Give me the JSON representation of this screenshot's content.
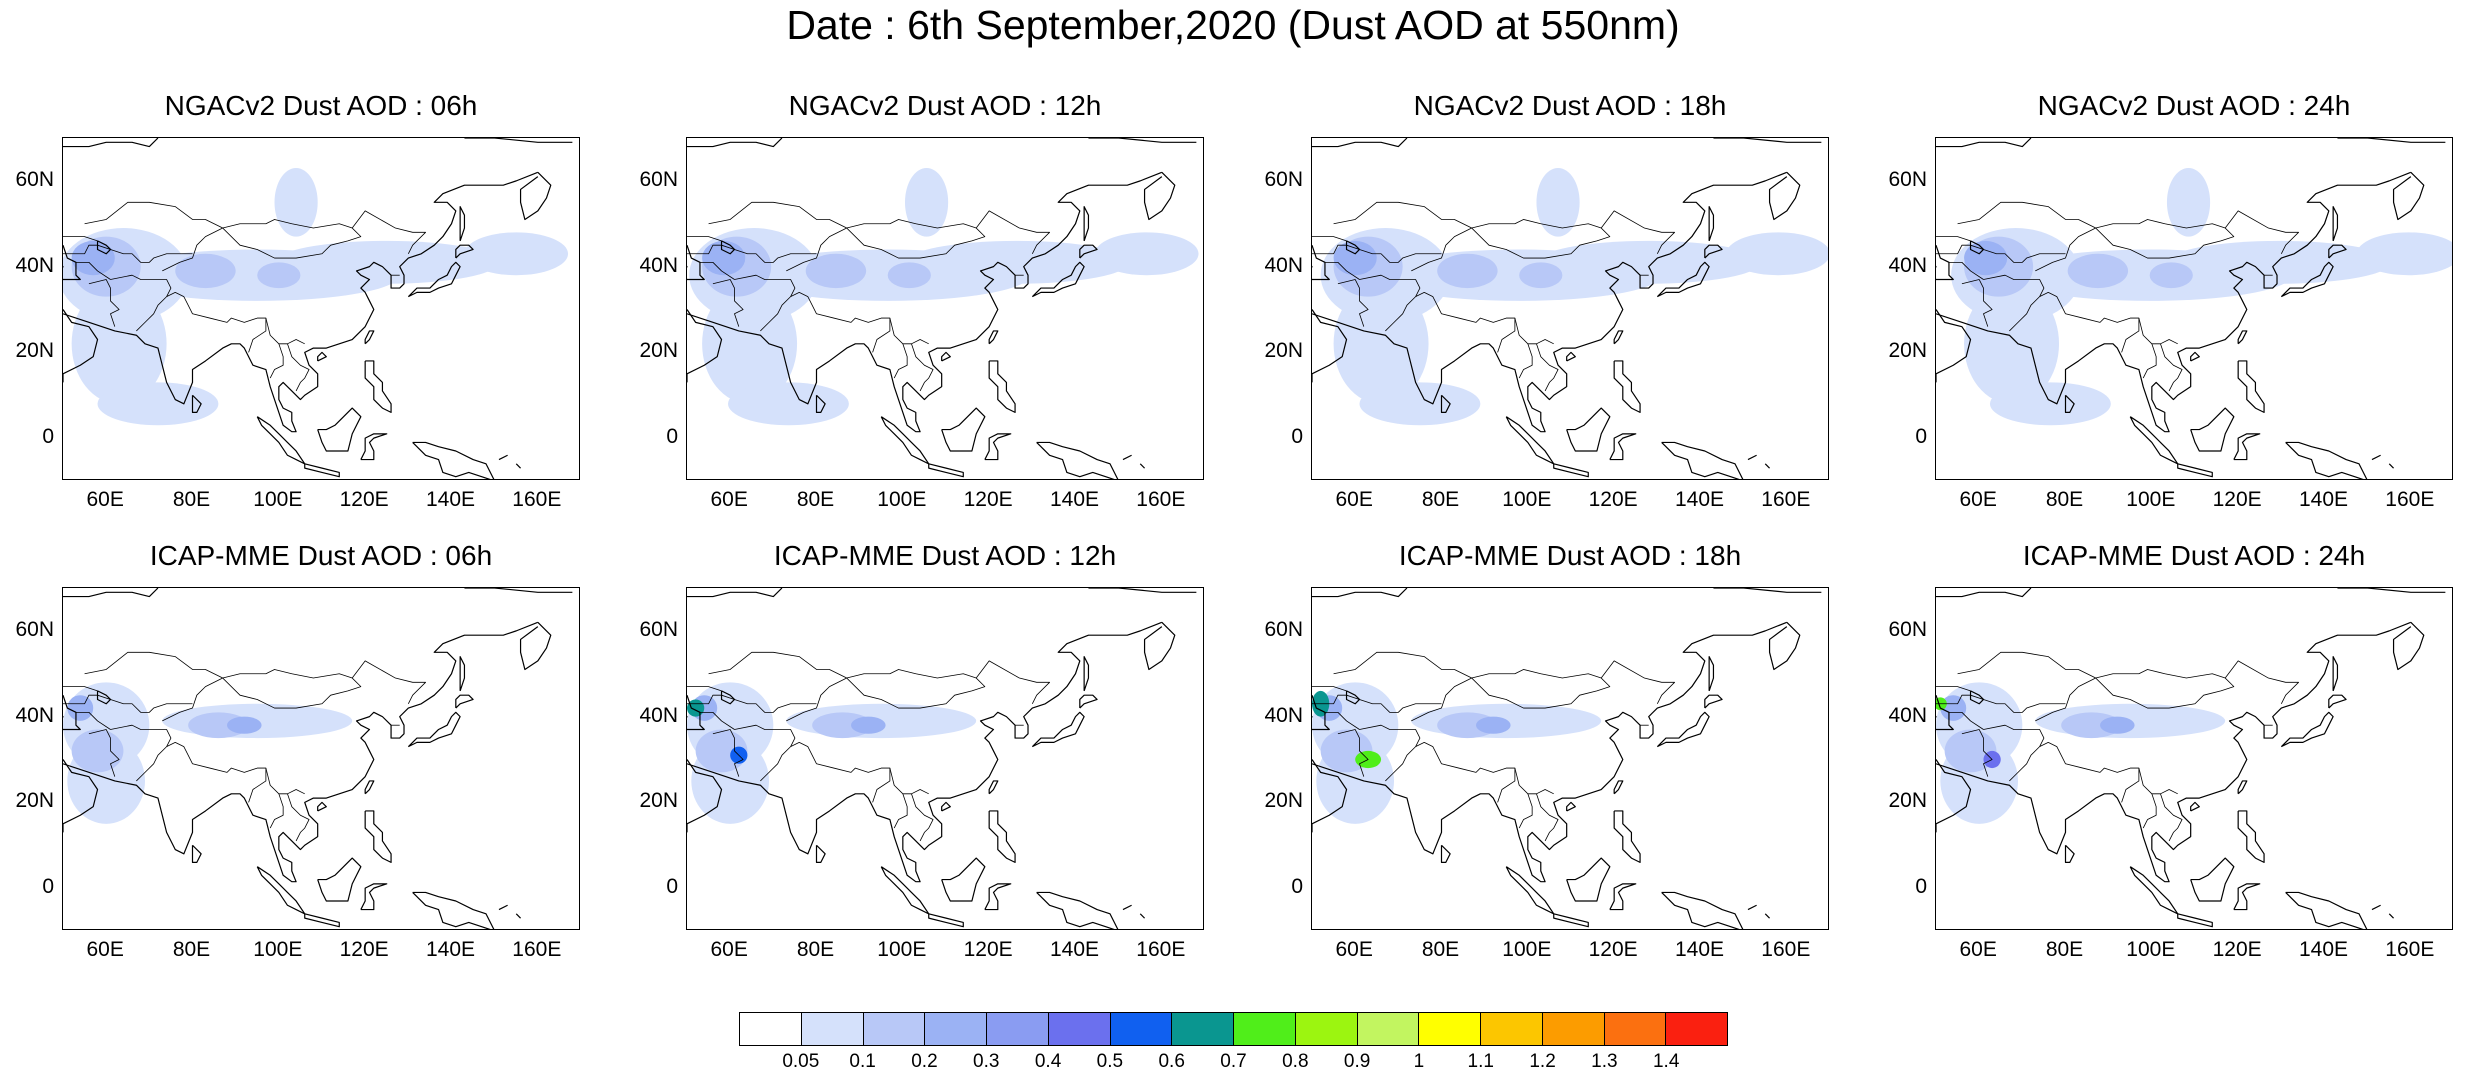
{
  "title": "Date : 6th September,2020 (Dust AOD at 550nm)",
  "panels": [
    {
      "title": "NGACv2 Dust AOD : 06h",
      "model": "NGACv2",
      "hour": "06h"
    },
    {
      "title": "NGACv2 Dust AOD : 12h",
      "model": "NGACv2",
      "hour": "12h"
    },
    {
      "title": "NGACv2 Dust AOD : 18h",
      "model": "NGACv2",
      "hour": "18h"
    },
    {
      "title": "NGACv2 Dust AOD : 24h",
      "model": "NGACv2",
      "hour": "24h"
    },
    {
      "title": "ICAP-MME Dust AOD : 06h",
      "model": "ICAP-MME",
      "hour": "06h"
    },
    {
      "title": "ICAP-MME Dust AOD : 12h",
      "model": "ICAP-MME",
      "hour": "12h"
    },
    {
      "title": "ICAP-MME Dust AOD : 18h",
      "model": "ICAP-MME",
      "hour": "18h"
    },
    {
      "title": "ICAP-MME Dust AOD : 24h",
      "model": "ICAP-MME",
      "hour": "24h"
    }
  ],
  "axes": {
    "lon_range": [
      50,
      170
    ],
    "lat_range": [
      -10,
      70
    ],
    "lon_ticks": [
      "60E",
      "80E",
      "100E",
      "120E",
      "140E",
      "160E"
    ],
    "lat_ticks": [
      "60N",
      "40N",
      "20N",
      "0"
    ]
  },
  "colorbar": {
    "colors": [
      "#ffffff",
      "#d5e1fb",
      "#b8c8f7",
      "#9bb2f4",
      "#8a9cf2",
      "#6b70ee",
      "#1060f0",
      "#0a9690",
      "#50ee1a",
      "#9cf510",
      "#c2f560",
      "#ffff00",
      "#fcc600",
      "#fc9c00",
      "#fb7010",
      "#fa2010"
    ],
    "labels": [
      "0.05",
      "0.1",
      "0.2",
      "0.3",
      "0.4",
      "0.5",
      "0.6",
      "0.7",
      "0.8",
      "0.9",
      "1",
      "1.1",
      "1.2",
      "1.3",
      "1.4"
    ]
  }
}
